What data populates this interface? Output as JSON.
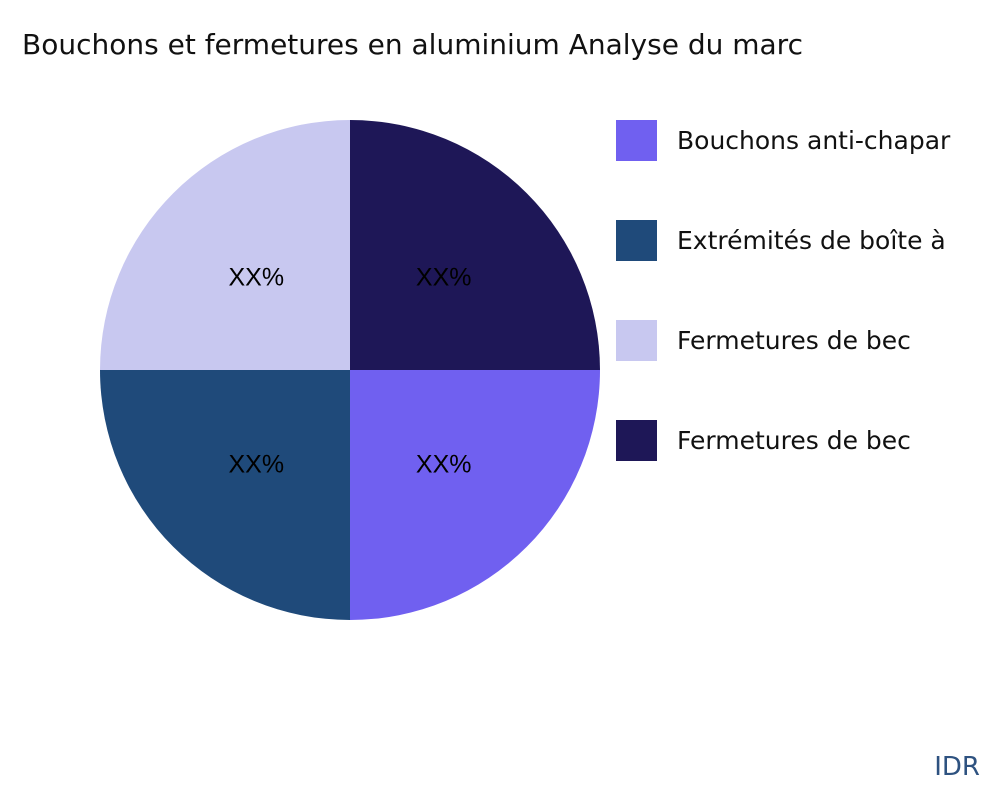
{
  "chart_data": {
    "type": "pie",
    "title": "Bouchons et fermetures en aluminium Analyse du marc",
    "slices": [
      {
        "label": "Bouchons anti-chapar",
        "value": 25,
        "text": "XX%",
        "color": "#7060f0"
      },
      {
        "label": "Extrémités de boîte à",
        "value": 25,
        "text": "XX%",
        "color": "#1f4a7a"
      },
      {
        "label": "Fermetures de bec",
        "value": 25,
        "text": "XX%",
        "color": "#c8c8f0"
      },
      {
        "label": "Fermetures de bec",
        "value": 25,
        "text": "XX%",
        "color": "#1e1757"
      }
    ],
    "legend_position": "right"
  },
  "brand": "IDR"
}
